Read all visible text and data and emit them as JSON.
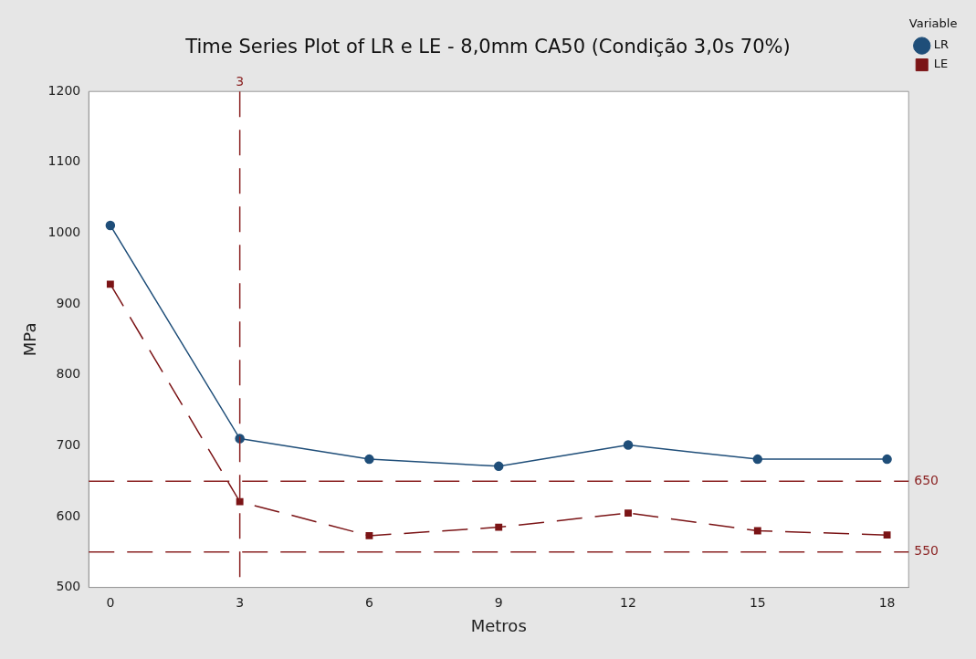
{
  "chart_data": {
    "type": "line",
    "title": "Time Series Plot of LR e LE - 8,0mm CA50 (Condição 3,0s 70%)",
    "xlabel": "Metros",
    "ylabel": "MPa",
    "legend_title": "Variable",
    "x": [
      0,
      3,
      6,
      9,
      12,
      15,
      18
    ],
    "series": [
      {
        "name": "LR",
        "color": "#1f4e79",
        "values": [
          1011,
          710,
          681,
          671,
          701,
          681,
          681
        ],
        "marker": "circle",
        "line_style": "solid"
      },
      {
        "name": "LE",
        "color": "#7b1416",
        "values": [
          928,
          621,
          573,
          585,
          605,
          580,
          574
        ],
        "marker": "square",
        "line_style": "dashed"
      }
    ],
    "xlim": [
      -0.5,
      18.5
    ],
    "xticks": [
      0,
      3,
      6,
      9,
      12,
      15,
      18
    ],
    "ylim": [
      500,
      1200
    ],
    "yticks": [
      500,
      600,
      700,
      800,
      900,
      1000,
      1100,
      1200
    ],
    "grid": false,
    "legend": "top right",
    "ref_lines": [
      {
        "axis": "x",
        "value": 3,
        "label": "3",
        "color": "#8b2323",
        "line_style": "dashed"
      },
      {
        "axis": "y",
        "value": 650,
        "label": "650",
        "color": "#8b2323",
        "line_style": "dashed"
      },
      {
        "axis": "y",
        "value": 550,
        "label": "550",
        "color": "#8b2323",
        "line_style": "dashed"
      }
    ]
  }
}
